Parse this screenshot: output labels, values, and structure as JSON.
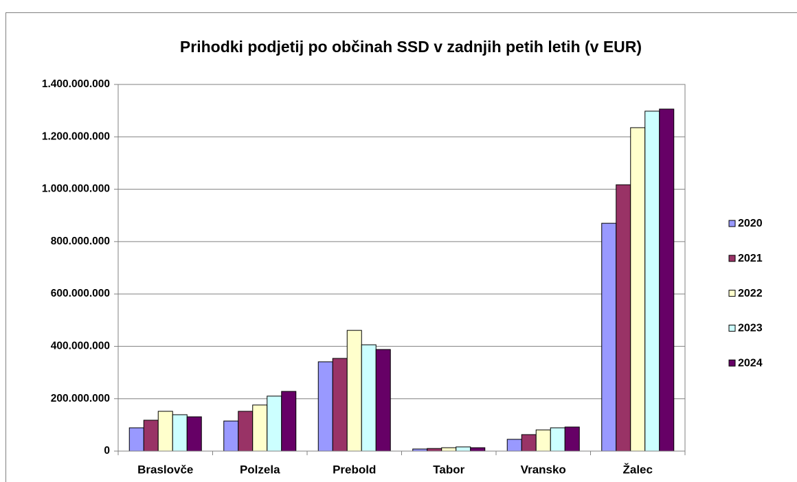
{
  "chart_data": {
    "type": "bar",
    "title": "Prihodki podjetij po občinah SSD v zadnjih petih letih (v EUR)",
    "categories": [
      "Braslovče",
      "Polzela",
      "Prebold",
      "Tabor",
      "Vransko",
      "Žalec"
    ],
    "series": [
      {
        "name": "2020",
        "color": "#9999ff",
        "values": [
          89000000,
          115000000,
          341000000,
          8000000,
          45000000,
          870000000
        ]
      },
      {
        "name": "2021",
        "color": "#993366",
        "values": [
          118000000,
          152000000,
          354000000,
          10000000,
          63000000,
          1017000000
        ]
      },
      {
        "name": "2022",
        "color": "#ffffcc",
        "values": [
          152000000,
          176000000,
          461000000,
          13000000,
          81000000,
          1235000000
        ]
      },
      {
        "name": "2023",
        "color": "#ccffff",
        "values": [
          139000000,
          210000000,
          406000000,
          16000000,
          89000000,
          1298000000
        ]
      },
      {
        "name": "2024",
        "color": "#660066",
        "values": [
          131000000,
          228000000,
          388000000,
          13000000,
          92000000,
          1306000000
        ]
      }
    ],
    "ylim": [
      0,
      1400000000
    ],
    "yticks": [
      0,
      {
        "value": 200000000,
        "label": "200.000.000"
      },
      {
        "value": 400000000,
        "label": "400.000.000"
      },
      {
        "value": 600000000,
        "label": "600.000.000"
      },
      {
        "value": 800000000,
        "label": "800.000.000"
      },
      {
        "value": 1000000000,
        "label": "1.000.000.000"
      },
      {
        "value": 1200000000,
        "label": "1.200.000.000"
      },
      {
        "value": 1400000000,
        "label": "1.400.000.000"
      }
    ],
    "grid": true,
    "legend": "right"
  }
}
